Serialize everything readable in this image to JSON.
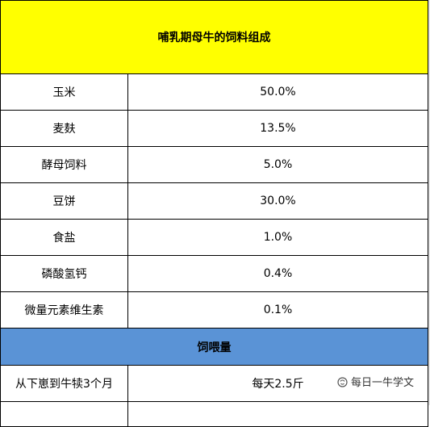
{
  "table": {
    "title": "哺乳期母牛的饲料组成",
    "rows": [
      {
        "name": "玉米",
        "value": "50.0%"
      },
      {
        "name": "麦麸",
        "value": "13.5%"
      },
      {
        "name": "酵母饲料",
        "value": "5.0%"
      },
      {
        "name": "豆饼",
        "value": "30.0%"
      },
      {
        "name": "食盐",
        "value": "1.0%"
      },
      {
        "name": "磷酸氢钙",
        "value": "0.4%"
      },
      {
        "name": "微量元素维生素",
        "value": "0.1%"
      }
    ],
    "section_header": "饲喂量",
    "feeding_rows": [
      {
        "name": "从下崽到牛犊3个月",
        "value": "每天2.5斤"
      }
    ]
  },
  "watermark": {
    "icon": "wechat-official-account-icon",
    "text": "每日一牛学文"
  },
  "colors": {
    "title_bg": "#ffff00",
    "section_bg": "#5a93d6"
  }
}
